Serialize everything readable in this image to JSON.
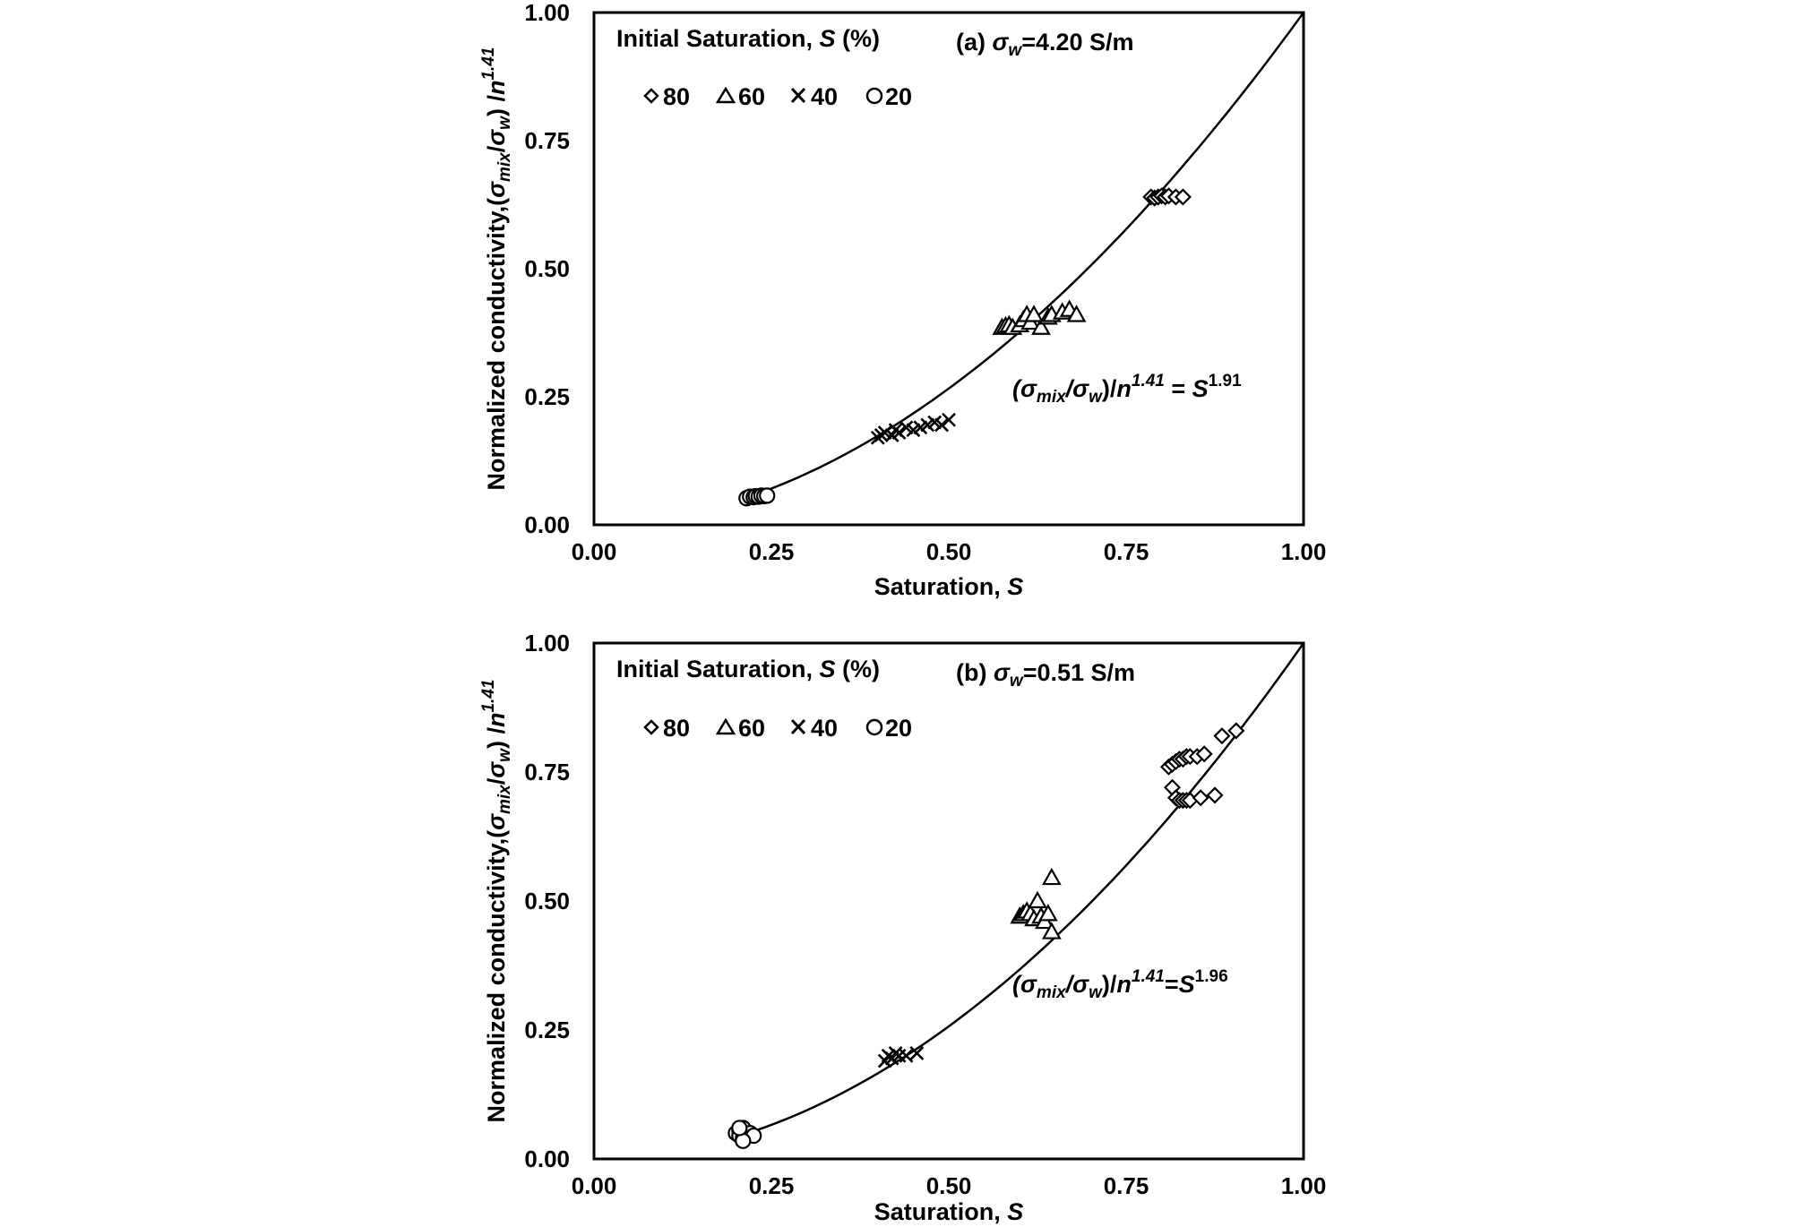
{
  "chart_data": [
    {
      "type": "scatter",
      "panel_label": "(a) σw=4.20 S/m",
      "panel_label_parts": {
        "prefix": "(a) ",
        "sym": "σ",
        "sub": "w",
        "suffix": "=4.20 S/m"
      },
      "xlabel": "Saturation, S",
      "xlabel_parts": {
        "main": "Saturation, ",
        "ital": "S"
      },
      "ylabel": "Normalized conductivity,(σmix/σw) /n1.41",
      "ylabel_parts": {
        "t1": "Normalized conductivity,(",
        "s1": "σ",
        "b1": "mix",
        "t2": "/",
        "s2": "σ",
        "b2": "w",
        "t3": ") /",
        "n": "n",
        "p": "1.41"
      },
      "xlim": [
        0,
        1
      ],
      "ylim": [
        0,
        1
      ],
      "xticks": [
        "0.00",
        "0.25",
        "0.50",
        "0.75",
        "1.00"
      ],
      "yticks": [
        "0.00",
        "0.25",
        "0.50",
        "0.75",
        "1.00"
      ],
      "legend_title": "Initial Saturation, S (%)",
      "legend_title_parts": {
        "a": "Initial Saturation, ",
        "b": "S",
        "c": " (%)"
      },
      "legend_placement": "top-left",
      "equation": "(σmix/σw)/n1.41 = S1.91",
      "equation_parts": {
        "e1": "(σ",
        "e2": "mix",
        "e3": "/σ",
        "e4": "w",
        "e5": ")/",
        "e6": "n",
        "e7": "1.41",
        "e8": " = ",
        "e9": "S",
        "e10": "1.91"
      },
      "fit_exponent": 1.91,
      "series": [
        {
          "name": "80",
          "marker": "diamond",
          "x": [
            0.785,
            0.79,
            0.795,
            0.8,
            0.805,
            0.81,
            0.82,
            0.83
          ],
          "y": [
            0.64,
            0.638,
            0.64,
            0.642,
            0.64,
            0.642,
            0.64,
            0.64
          ]
        },
        {
          "name": "60",
          "marker": "triangle",
          "x": [
            0.575,
            0.58,
            0.585,
            0.59,
            0.6,
            0.605,
            0.61,
            0.615,
            0.62,
            0.63,
            0.64,
            0.645,
            0.66,
            0.67,
            0.68
          ],
          "y": [
            0.385,
            0.388,
            0.39,
            0.385,
            0.39,
            0.4,
            0.41,
            0.395,
            0.41,
            0.385,
            0.405,
            0.41,
            0.415,
            0.42,
            0.41
          ]
        },
        {
          "name": "40",
          "marker": "cross",
          "x": [
            0.4,
            0.405,
            0.41,
            0.42,
            0.425,
            0.43,
            0.44,
            0.45,
            0.46,
            0.47,
            0.48,
            0.49,
            0.5
          ],
          "y": [
            0.17,
            0.175,
            0.18,
            0.175,
            0.185,
            0.18,
            0.19,
            0.185,
            0.19,
            0.195,
            0.2,
            0.195,
            0.205
          ]
        },
        {
          "name": "20",
          "marker": "circle",
          "x": [
            0.215,
            0.22,
            0.225,
            0.228,
            0.232,
            0.236,
            0.24,
            0.244
          ],
          "y": [
            0.052,
            0.055,
            0.054,
            0.056,
            0.055,
            0.057,
            0.056,
            0.057
          ]
        }
      ]
    },
    {
      "type": "scatter",
      "panel_label": "(b) σw=0.51 S/m",
      "panel_label_parts": {
        "prefix": "(b) ",
        "sym": "σ",
        "sub": "w",
        "suffix": "=0.51 S/m"
      },
      "xlabel": "Saturation, S",
      "xlabel_parts": {
        "main": "Saturation, ",
        "ital": "S"
      },
      "ylabel": "Normalized conductivity,(σmix/σw) /n1.41",
      "ylabel_parts": {
        "t1": "Normalized conductivity,(",
        "s1": "σ",
        "b1": "mix",
        "t2": "/",
        "s2": "σ",
        "b2": "w",
        "t3": ") /",
        "n": "n",
        "p": "1.41"
      },
      "xlim": [
        0,
        1
      ],
      "ylim": [
        0,
        1
      ],
      "xticks": [
        "0.00",
        "0.25",
        "0.50",
        "0.75",
        "1.00"
      ],
      "yticks": [
        "0.00",
        "0.25",
        "0.50",
        "0.75",
        "1.00"
      ],
      "legend_title": "Initial Saturation, S (%)",
      "legend_title_parts": {
        "a": "Initial Saturation, ",
        "b": "S",
        "c": " (%)"
      },
      "legend_placement": "top-left",
      "equation": "(σmix/σw)/n1.41=S1.96",
      "equation_parts": {
        "e1": "(σ",
        "e2": "mix",
        "e3": "/σ",
        "e4": "w",
        "e5": ")/",
        "e6": "n",
        "e7": "1.41",
        "e8": "=",
        "e9": "S",
        "e10": "1.96"
      },
      "fit_exponent": 1.96,
      "series": [
        {
          "name": "80",
          "marker": "diamond",
          "x": [
            0.81,
            0.815,
            0.82,
            0.825,
            0.83,
            0.835,
            0.84,
            0.85,
            0.86,
            0.885,
            0.905,
            0.815,
            0.82,
            0.825,
            0.83,
            0.835,
            0.84,
            0.855,
            0.875
          ],
          "y": [
            0.76,
            0.765,
            0.77,
            0.775,
            0.775,
            0.78,
            0.78,
            0.78,
            0.785,
            0.82,
            0.83,
            0.72,
            0.7,
            0.695,
            0.695,
            0.695,
            0.695,
            0.7,
            0.705
          ]
        },
        {
          "name": "60",
          "marker": "triangle",
          "x": [
            0.6,
            0.605,
            0.61,
            0.615,
            0.62,
            0.625,
            0.63,
            0.635,
            0.64,
            0.645,
            0.645
          ],
          "y": [
            0.47,
            0.475,
            0.48,
            0.475,
            0.465,
            0.5,
            0.47,
            0.46,
            0.475,
            0.545,
            0.44
          ]
        },
        {
          "name": "40",
          "marker": "cross",
          "x": [
            0.41,
            0.415,
            0.42,
            0.425,
            0.43,
            0.44,
            0.455
          ],
          "y": [
            0.19,
            0.2,
            0.195,
            0.205,
            0.2,
            0.2,
            0.205
          ]
        },
        {
          "name": "20",
          "marker": "circle",
          "x": [
            0.2,
            0.205,
            0.21,
            0.215,
            0.22,
            0.205,
            0.21,
            0.225,
            0.21,
            0.205
          ],
          "y": [
            0.05,
            0.055,
            0.06,
            0.045,
            0.05,
            0.045,
            0.04,
            0.045,
            0.035,
            0.06
          ]
        }
      ]
    }
  ]
}
